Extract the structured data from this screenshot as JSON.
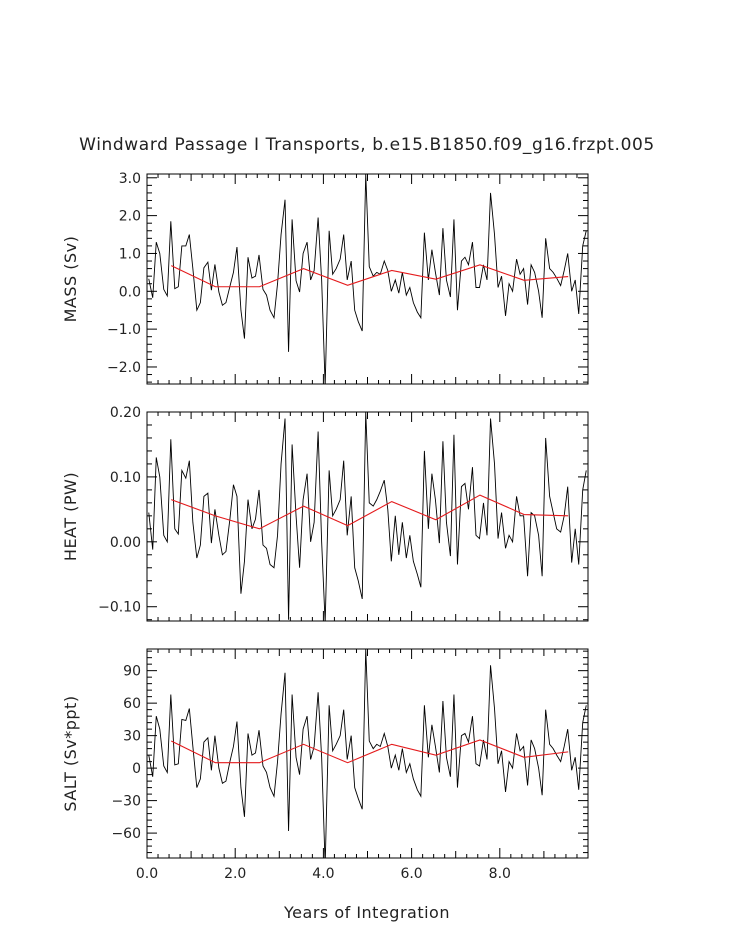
{
  "chart_data": {
    "type": "line",
    "title": "Windward Passage I Transports, b.e15.B1850.f09_g16.frzpt.005",
    "xlabel": "Years of Integration",
    "xlim": [
      0.0,
      10.0
    ],
    "xticks": [
      0,
      2,
      4,
      6,
      8
    ],
    "xtick_labels": [
      "0.0",
      "2.0",
      "4.0",
      "6.0",
      "8.0"
    ],
    "grid": false,
    "colors": {
      "raw": "#000000",
      "mean": "#e41a1c"
    },
    "panels": [
      {
        "name": "mass",
        "ylabel": "MASS (Sv)",
        "ylim": [
          -2.45,
          3.1
        ],
        "yticks": [
          3.0,
          2.0,
          1.0,
          0.0,
          -1.0,
          -2.0
        ],
        "ytick_labels": [
          "3.0",
          "2.0",
          "1.0",
          "0.0",
          "−1.0",
          "−2.0"
        ],
        "series": [
          {
            "role": "monthly",
            "x": [
              0.04,
              0.13,
              0.21,
              0.29,
              0.38,
              0.46,
              0.54,
              0.63,
              0.71,
              0.79,
              0.88,
              0.96,
              1.04,
              1.13,
              1.21,
              1.29,
              1.38,
              1.46,
              1.54,
              1.63,
              1.71,
              1.79,
              1.88,
              1.96,
              2.04,
              2.13,
              2.21,
              2.29,
              2.38,
              2.46,
              2.54,
              2.63,
              2.71,
              2.79,
              2.88,
              2.96,
              3.04,
              3.13,
              3.21,
              3.29,
              3.38,
              3.46,
              3.54,
              3.63,
              3.71,
              3.79,
              3.88,
              3.96,
              4.04,
              4.13,
              4.21,
              4.29,
              4.38,
              4.46,
              4.54,
              4.63,
              4.71,
              4.79,
              4.88,
              4.96,
              5.04,
              5.13,
              5.21,
              5.29,
              5.38,
              5.46,
              5.54,
              5.63,
              5.71,
              5.79,
              5.88,
              5.96,
              6.04,
              6.13,
              6.21,
              6.29,
              6.38,
              6.46,
              6.54,
              6.63,
              6.71,
              6.79,
              6.88,
              6.96,
              7.04,
              7.13,
              7.21,
              7.29,
              7.38,
              7.46,
              7.54,
              7.63,
              7.71,
              7.79,
              7.88,
              7.96,
              8.04,
              8.13,
              8.21,
              8.29,
              8.38,
              8.46,
              8.54,
              8.63,
              8.71,
              8.79,
              8.88,
              8.96,
              9.04,
              9.13,
              9.21,
              9.29,
              9.38,
              9.46,
              9.54,
              9.63,
              9.71,
              9.79,
              9.88,
              9.96
            ],
            "y": [
              0.33,
              -0.17,
              1.3,
              1.0,
              0.05,
              -0.12,
              1.85,
              0.07,
              0.12,
              1.2,
              1.2,
              1.5,
              0.6,
              -0.5,
              -0.3,
              0.62,
              0.77,
              0.03,
              0.71,
              -0.02,
              -0.37,
              -0.3,
              0.13,
              0.5,
              1.17,
              -0.5,
              -1.25,
              0.9,
              0.35,
              0.4,
              0.96,
              0.05,
              -0.1,
              -0.5,
              -0.7,
              0.2,
              1.5,
              2.42,
              -1.6,
              1.9,
              0.28,
              -0.02,
              1.0,
              1.3,
              0.3,
              0.55,
              1.95,
              0.3,
              -2.5,
              1.6,
              0.45,
              0.6,
              0.85,
              1.5,
              0.3,
              0.8,
              -0.5,
              -0.8,
              -1.05,
              3.1,
              0.65,
              0.4,
              0.5,
              0.45,
              0.8,
              0.55,
              0.0,
              0.3,
              -0.05,
              0.5,
              -0.1,
              0.1,
              -0.3,
              -0.55,
              -0.7,
              1.55,
              0.3,
              1.1,
              0.5,
              -0.1,
              1.67,
              0.3,
              -0.15,
              1.9,
              -0.5,
              0.8,
              0.9,
              0.7,
              1.3,
              0.1,
              0.1,
              0.7,
              0.3,
              2.6,
              1.5,
              0.1,
              0.4,
              -0.65,
              0.2,
              0.0,
              0.85,
              0.45,
              0.6,
              -0.35,
              0.7,
              0.5,
              0.0,
              -0.7,
              1.4,
              0.6,
              0.5,
              0.35,
              0.15,
              0.55,
              1.0,
              0.0,
              0.3,
              -0.6,
              1.2,
              1.6
            ]
          },
          {
            "role": "annual-mean",
            "x": [
              0.55,
              1.55,
              2.55,
              3.55,
              4.55,
              5.55,
              6.55,
              7.55,
              8.55,
              9.55
            ],
            "y": [
              0.68,
              0.12,
              0.12,
              0.6,
              0.16,
              0.55,
              0.32,
              0.7,
              0.29,
              0.39
            ]
          }
        ]
      },
      {
        "name": "heat",
        "ylabel": "HEAT (PW)",
        "ylim": [
          -0.122,
          0.2
        ],
        "yticks": [
          0.2,
          0.1,
          0.0,
          -0.1
        ],
        "ytick_labels": [
          "0.20",
          "0.10",
          "0.00",
          "−0.10"
        ],
        "series": [
          {
            "role": "monthly",
            "x": [
              0.04,
              0.13,
              0.21,
              0.29,
              0.38,
              0.46,
              0.54,
              0.63,
              0.71,
              0.79,
              0.88,
              0.96,
              1.04,
              1.13,
              1.21,
              1.29,
              1.38,
              1.46,
              1.54,
              1.63,
              1.71,
              1.79,
              1.88,
              1.96,
              2.04,
              2.13,
              2.21,
              2.29,
              2.38,
              2.46,
              2.54,
              2.63,
              2.71,
              2.79,
              2.88,
              2.96,
              3.04,
              3.13,
              3.21,
              3.29,
              3.38,
              3.46,
              3.54,
              3.63,
              3.71,
              3.79,
              3.88,
              3.96,
              4.04,
              4.13,
              4.21,
              4.29,
              4.38,
              4.46,
              4.54,
              4.63,
              4.71,
              4.79,
              4.88,
              4.96,
              5.04,
              5.13,
              5.21,
              5.29,
              5.38,
              5.46,
              5.54,
              5.63,
              5.71,
              5.79,
              5.88,
              5.96,
              6.04,
              6.13,
              6.21,
              6.29,
              6.38,
              6.46,
              6.54,
              6.63,
              6.71,
              6.79,
              6.88,
              6.96,
              7.04,
              7.13,
              7.21,
              7.29,
              7.38,
              7.46,
              7.54,
              7.63,
              7.71,
              7.79,
              7.88,
              7.96,
              8.04,
              8.13,
              8.21,
              8.29,
              8.38,
              8.46,
              8.54,
              8.63,
              8.71,
              8.79,
              8.88,
              8.96,
              9.04,
              9.13,
              9.21,
              9.29,
              9.38,
              9.46,
              9.54,
              9.63,
              9.71,
              9.79,
              9.88,
              9.96
            ],
            "y": [
              0.045,
              -0.012,
              0.13,
              0.1,
              0.01,
              0.0,
              0.158,
              0.02,
              0.012,
              0.11,
              0.098,
              0.125,
              0.03,
              -0.025,
              -0.005,
              0.07,
              0.075,
              -0.002,
              0.05,
              0.01,
              -0.02,
              -0.015,
              0.035,
              0.088,
              0.07,
              -0.08,
              -0.03,
              0.065,
              0.02,
              0.035,
              0.08,
              -0.005,
              -0.01,
              -0.035,
              -0.04,
              0.01,
              0.12,
              0.19,
              -0.12,
              0.15,
              0.04,
              -0.04,
              0.065,
              0.105,
              0.0,
              0.03,
              0.17,
              0.0,
              -0.125,
              0.11,
              0.04,
              0.05,
              0.065,
              0.125,
              0.01,
              0.07,
              -0.04,
              -0.06,
              -0.088,
              0.2,
              0.06,
              0.055,
              0.065,
              0.078,
              0.095,
              0.05,
              -0.03,
              0.04,
              -0.02,
              0.03,
              -0.025,
              0.01,
              -0.03,
              -0.05,
              -0.07,
              0.14,
              0.02,
              0.105,
              0.065,
              -0.002,
              0.155,
              0.03,
              -0.022,
              0.165,
              -0.035,
              0.085,
              0.09,
              0.05,
              0.115,
              0.01,
              0.005,
              0.06,
              0.01,
              0.19,
              0.12,
              0.005,
              0.045,
              -0.01,
              0.01,
              0.0,
              0.07,
              0.04,
              0.04,
              -0.053,
              0.045,
              0.04,
              0.01,
              -0.053,
              0.16,
              0.07,
              0.045,
              0.02,
              0.015,
              0.04,
              0.085,
              -0.032,
              0.02,
              -0.035,
              0.08,
              0.11
            ]
          },
          {
            "role": "annual-mean",
            "x": [
              0.55,
              1.55,
              2.55,
              3.55,
              4.55,
              5.55,
              6.55,
              7.55,
              8.55,
              9.55
            ],
            "y": [
              0.065,
              0.04,
              0.02,
              0.055,
              0.025,
              0.062,
              0.034,
              0.072,
              0.042,
              0.04
            ]
          }
        ]
      },
      {
        "name": "salt",
        "ylabel": "SALT (Sv*ppt)",
        "ylim": [
          -83,
          110
        ],
        "yticks": [
          90,
          60,
          30,
          0,
          -30,
          -60
        ],
        "ytick_labels": [
          "90",
          "60",
          "30",
          "0",
          "−30",
          "−60"
        ],
        "series": [
          {
            "role": "monthly",
            "x": [
              0.04,
              0.13,
              0.21,
              0.29,
              0.38,
              0.46,
              0.54,
              0.63,
              0.71,
              0.79,
              0.88,
              0.96,
              1.04,
              1.13,
              1.21,
              1.29,
              1.38,
              1.46,
              1.54,
              1.63,
              1.71,
              1.79,
              1.88,
              1.96,
              2.04,
              2.13,
              2.21,
              2.29,
              2.38,
              2.46,
              2.54,
              2.63,
              2.71,
              2.79,
              2.88,
              2.96,
              3.04,
              3.13,
              3.21,
              3.29,
              3.38,
              3.46,
              3.54,
              3.63,
              3.71,
              3.79,
              3.88,
              3.96,
              4.04,
              4.13,
              4.21,
              4.29,
              4.38,
              4.46,
              4.54,
              4.63,
              4.71,
              4.79,
              4.88,
              4.96,
              5.04,
              5.13,
              5.21,
              5.29,
              5.38,
              5.46,
              5.54,
              5.63,
              5.71,
              5.79,
              5.88,
              5.96,
              6.04,
              6.13,
              6.21,
              6.29,
              6.38,
              6.46,
              6.54,
              6.63,
              6.71,
              6.79,
              6.88,
              6.96,
              7.04,
              7.13,
              7.21,
              7.29,
              7.38,
              7.46,
              7.54,
              7.63,
              7.71,
              7.79,
              7.88,
              7.96,
              8.04,
              8.13,
              8.21,
              8.29,
              8.38,
              8.46,
              8.54,
              8.63,
              8.71,
              8.79,
              8.88,
              8.96,
              9.04,
              9.13,
              9.21,
              9.29,
              9.38,
              9.46,
              9.54,
              9.63,
              9.71,
              9.79,
              9.88,
              9.96
            ],
            "y": [
              12,
              -8,
              48,
              36,
              2,
              -4,
              68,
              3,
              4,
              45,
              44,
              55,
              20,
              -18,
              -10,
              24,
              28,
              -2,
              30,
              0,
              -14,
              -12,
              6,
              20,
              43,
              -18,
              -45,
              32,
              12,
              14,
              35,
              2,
              -4,
              -18,
              -26,
              6,
              50,
              88,
              -58,
              68,
              10,
              -6,
              36,
              48,
              8,
              20,
              70,
              10,
              -90,
              58,
              16,
              22,
              30,
              54,
              8,
              30,
              -18,
              -28,
              -38,
              110,
              25,
              18,
              22,
              20,
              32,
              20,
              0,
              12,
              -2,
              18,
              -4,
              4,
              -10,
              -20,
              -26,
              58,
              10,
              40,
              20,
              -4,
              62,
              10,
              -8,
              68,
              -18,
              30,
              32,
              24,
              48,
              4,
              2,
              26,
              8,
              95,
              55,
              4,
              16,
              -22,
              6,
              0,
              32,
              16,
              20,
              -16,
              26,
              18,
              0,
              -25,
              54,
              22,
              18,
              12,
              6,
              20,
              36,
              -2,
              10,
              -20,
              42,
              58
            ]
          },
          {
            "role": "annual-mean",
            "x": [
              0.55,
              1.55,
              2.55,
              3.55,
              4.55,
              5.55,
              6.55,
              7.55,
              8.55,
              9.55
            ],
            "y": [
              25,
              5,
              5,
              22,
              5,
              22,
              12,
              26,
              10,
              15
            ]
          }
        ]
      }
    ]
  }
}
